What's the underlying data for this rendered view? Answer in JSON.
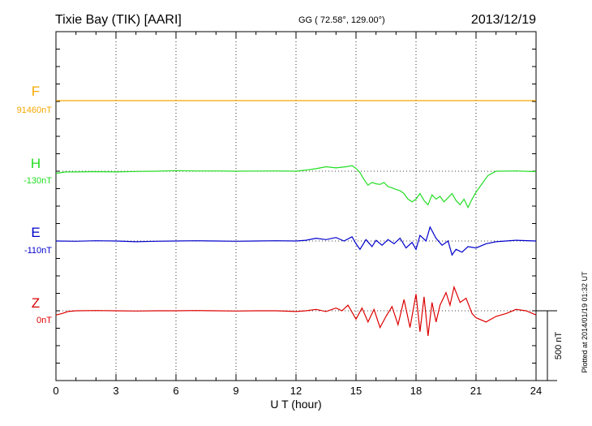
{
  "header": {
    "station": "Tixie Bay (TIK)  [AARI]",
    "coords": "GG ( 72.58°, 129.00°)",
    "date": "2013/12/19"
  },
  "plotted_note": "Plotted at 2014/01/19 01:32 UT",
  "chart_data": {
    "type": "line",
    "xlabel": "U T (hour)",
    "xlim": [
      0,
      24
    ],
    "x_ticks": [
      "0",
      "3",
      "6",
      "9",
      "12",
      "15",
      "18",
      "21",
      "24"
    ],
    "scale_bar_label": "500 nT",
    "series": [
      {
        "name": "F",
        "baseline_label": "91460nT",
        "color": "#f5a800",
        "x": [
          0,
          2,
          4,
          6,
          8,
          10,
          12,
          14,
          16,
          18,
          20,
          22,
          24
        ],
        "y": [
          0,
          0,
          0,
          0,
          0,
          0,
          0,
          0,
          0,
          0,
          0,
          0,
          0
        ]
      },
      {
        "name": "H",
        "baseline_label": "-130nT",
        "color": "#22dd22",
        "x": [
          0,
          0.5,
          1,
          2,
          3,
          4,
          5,
          6,
          7,
          8,
          9,
          10,
          11,
          12,
          12.5,
          13,
          13.5,
          14,
          14.5,
          14.8,
          15,
          15.2,
          15.4,
          15.6,
          15.8,
          16,
          16.2,
          16.4,
          16.6,
          16.8,
          17,
          17.2,
          17.4,
          17.6,
          17.8,
          18,
          18.2,
          18.4,
          18.6,
          18.8,
          19,
          19.2,
          19.4,
          19.6,
          19.8,
          20,
          20.2,
          20.4,
          20.6,
          20.8,
          21,
          21.3,
          21.6,
          22,
          23,
          24
        ],
        "y": [
          -15,
          -5,
          -5,
          -3,
          -5,
          -2,
          0,
          4,
          2,
          2,
          0,
          1,
          2,
          0,
          8,
          18,
          32,
          24,
          32,
          40,
          20,
          -10,
          -60,
          -100,
          -80,
          -90,
          -95,
          -80,
          -110,
          -120,
          -130,
          -140,
          -160,
          -200,
          -220,
          -200,
          -160,
          -210,
          -240,
          -170,
          -200,
          -180,
          -220,
          -190,
          -160,
          -210,
          -240,
          -200,
          -260,
          -200,
          -150,
          -90,
          -30,
          0,
          2,
          -3
        ]
      },
      {
        "name": "E",
        "baseline_label": "-110nT",
        "color": "#0000cc",
        "x": [
          0,
          1,
          2,
          3,
          4,
          5,
          6,
          7,
          8,
          9,
          10,
          11,
          12,
          12.5,
          13,
          13.5,
          14,
          14.4,
          14.8,
          15,
          15.2,
          15.5,
          15.8,
          16,
          16.3,
          16.6,
          16.9,
          17.2,
          17.5,
          17.8,
          18,
          18.2,
          18.5,
          18.7,
          19,
          19.3,
          19.6,
          19.8,
          20,
          20.3,
          20.6,
          21,
          21.5,
          22,
          23,
          24
        ],
        "y": [
          0,
          -2,
          2,
          0,
          -5,
          -2,
          0,
          2,
          0,
          -2,
          0,
          2,
          0,
          5,
          20,
          10,
          25,
          0,
          30,
          -20,
          -60,
          10,
          -40,
          5,
          -30,
          10,
          -20,
          20,
          -50,
          -10,
          -60,
          40,
          0,
          100,
          20,
          -30,
          0,
          -100,
          -60,
          -80,
          -40,
          -50,
          -20,
          -5,
          5,
          0
        ]
      },
      {
        "name": "Z",
        "baseline_label": "0nT",
        "color": "#dd0000",
        "x": [
          0,
          0.3,
          0.6,
          1,
          2,
          3,
          4,
          5,
          6,
          7,
          8,
          9,
          10,
          11,
          12,
          12.5,
          13,
          13.5,
          14,
          14.3,
          14.6,
          15,
          15.3,
          15.6,
          15.9,
          16.2,
          16.5,
          16.8,
          17.1,
          17.4,
          17.7,
          18,
          18.2,
          18.4,
          18.6,
          18.8,
          19,
          19.2,
          19.5,
          19.7,
          19.9,
          20.2,
          20.5,
          20.8,
          21,
          21.5,
          22,
          22.5,
          23,
          23.5,
          24
        ],
        "y": [
          -30,
          -20,
          -5,
          0,
          2,
          0,
          -2,
          0,
          0,
          2,
          0,
          -2,
          0,
          0,
          -5,
          0,
          10,
          -5,
          20,
          0,
          40,
          -60,
          20,
          -80,
          10,
          -120,
          -40,
          30,
          -100,
          80,
          -120,
          120,
          -150,
          100,
          -180,
          60,
          -80,
          40,
          130,
          40,
          170,
          60,
          90,
          -20,
          -50,
          -80,
          -40,
          -20,
          10,
          0,
          -30
        ]
      }
    ]
  }
}
